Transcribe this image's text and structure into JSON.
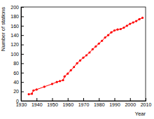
{
  "chart_data": {
    "type": "line",
    "xlabel": "Year",
    "ylabel": "Number of stations",
    "x": [
      1935,
      1937,
      1938,
      1940,
      1945,
      1950,
      1953,
      1955,
      1957,
      1958,
      1960,
      1962,
      1964,
      1966,
      1968,
      1970,
      1972,
      1974,
      1976,
      1978,
      1980,
      1982,
      1984,
      1986,
      1988,
      1990,
      1992,
      1994,
      1996,
      1998,
      2000,
      2002,
      2004,
      2006,
      2008
    ],
    "values": [
      14,
      15,
      22,
      24,
      30,
      36,
      40,
      42,
      44,
      52,
      58,
      65,
      72,
      80,
      86,
      92,
      97,
      103,
      110,
      116,
      122,
      128,
      135,
      140,
      146,
      150,
      152,
      153,
      156,
      160,
      164,
      167,
      170,
      174,
      177
    ],
    "color": "#ff0000",
    "marker": "circle",
    "line_style": "solid",
    "xlim": [
      1930,
      2010
    ],
    "xticks": [
      1930,
      1940,
      1950,
      1960,
      1970,
      1980,
      1990,
      2000,
      2010
    ],
    "ylim": [
      0,
      200
    ],
    "yticks": [
      0,
      20,
      40,
      60,
      80,
      100,
      120,
      140,
      160,
      180,
      200
    ],
    "grid": false
  }
}
